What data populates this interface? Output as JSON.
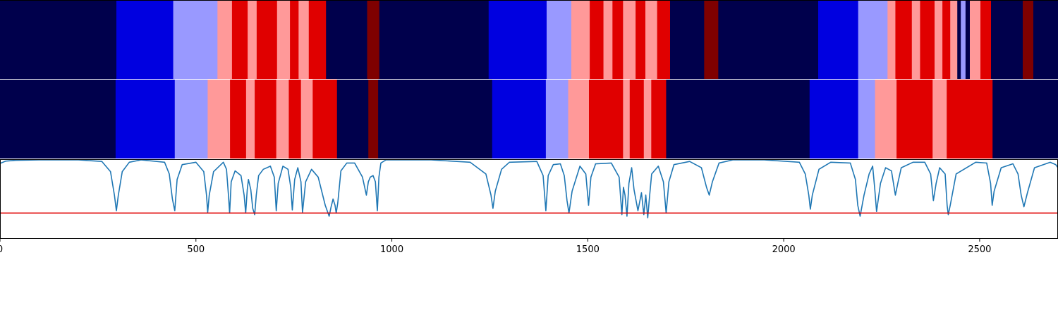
{
  "chart_data": [
    {
      "type": "heatmap",
      "panel": "top",
      "xlim": [
        0,
        2700
      ],
      "segments": [
        {
          "x0": 0,
          "x1": 297,
          "color": "#00004c"
        },
        {
          "x0": 297,
          "x1": 442,
          "color": "#0000e0"
        },
        {
          "x0": 442,
          "x1": 555,
          "color": "#9999ff"
        },
        {
          "x0": 555,
          "x1": 592,
          "color": "#ff9999"
        },
        {
          "x0": 592,
          "x1": 632,
          "color": "#e00000"
        },
        {
          "x0": 632,
          "x1": 655,
          "color": "#ff9999"
        },
        {
          "x0": 655,
          "x1": 707,
          "color": "#e00000"
        },
        {
          "x0": 707,
          "x1": 740,
          "color": "#ff9999"
        },
        {
          "x0": 740,
          "x1": 762,
          "color": "#e00000"
        },
        {
          "x0": 762,
          "x1": 788,
          "color": "#ff9999"
        },
        {
          "x0": 788,
          "x1": 832,
          "color": "#e00000"
        },
        {
          "x0": 832,
          "x1": 937,
          "color": "#00004c"
        },
        {
          "x0": 937,
          "x1": 968,
          "color": "#7f0000"
        },
        {
          "x0": 968,
          "x1": 1247,
          "color": "#00004c"
        },
        {
          "x0": 1247,
          "x1": 1395,
          "color": "#0000e0"
        },
        {
          "x0": 1395,
          "x1": 1458,
          "color": "#9999ff"
        },
        {
          "x0": 1458,
          "x1": 1505,
          "color": "#ff9999"
        },
        {
          "x0": 1505,
          "x1": 1540,
          "color": "#e00000"
        },
        {
          "x0": 1540,
          "x1": 1563,
          "color": "#ff9999"
        },
        {
          "x0": 1563,
          "x1": 1590,
          "color": "#e00000"
        },
        {
          "x0": 1590,
          "x1": 1622,
          "color": "#ff9999"
        },
        {
          "x0": 1622,
          "x1": 1647,
          "color": "#e00000"
        },
        {
          "x0": 1647,
          "x1": 1677,
          "color": "#ff9999"
        },
        {
          "x0": 1677,
          "x1": 1710,
          "color": "#e00000"
        },
        {
          "x0": 1710,
          "x1": 1797,
          "color": "#00004c"
        },
        {
          "x0": 1797,
          "x1": 1833,
          "color": "#7f0000"
        },
        {
          "x0": 1833,
          "x1": 2088,
          "color": "#00004c"
        },
        {
          "x0": 2088,
          "x1": 2190,
          "color": "#0000e0"
        },
        {
          "x0": 2190,
          "x1": 2265,
          "color": "#9999ff"
        },
        {
          "x0": 2265,
          "x1": 2285,
          "color": "#ff9999"
        },
        {
          "x0": 2285,
          "x1": 2327,
          "color": "#e00000"
        },
        {
          "x0": 2327,
          "x1": 2348,
          "color": "#ff9999"
        },
        {
          "x0": 2348,
          "x1": 2385,
          "color": "#e00000"
        },
        {
          "x0": 2385,
          "x1": 2405,
          "color": "#ff9999"
        },
        {
          "x0": 2405,
          "x1": 2425,
          "color": "#e00000"
        },
        {
          "x0": 2425,
          "x1": 2443,
          "color": "#ff9999"
        },
        {
          "x0": 2443,
          "x1": 2452,
          "color": "#00004c"
        },
        {
          "x0": 2452,
          "x1": 2464,
          "color": "#9999ff"
        },
        {
          "x0": 2464,
          "x1": 2475,
          "color": "#00004c"
        },
        {
          "x0": 2475,
          "x1": 2502,
          "color": "#ff9999"
        },
        {
          "x0": 2502,
          "x1": 2529,
          "color": "#e00000"
        },
        {
          "x0": 2529,
          "x1": 2610,
          "color": "#00004c"
        },
        {
          "x0": 2610,
          "x1": 2637,
          "color": "#7f0000"
        },
        {
          "x0": 2637,
          "x1": 2700,
          "color": "#00004c"
        }
      ]
    },
    {
      "type": "heatmap",
      "panel": "middle",
      "xlim": [
        0,
        2700
      ],
      "segments": [
        {
          "x0": 0,
          "x1": 295,
          "color": "#00004c"
        },
        {
          "x0": 295,
          "x1": 446,
          "color": "#0000e0"
        },
        {
          "x0": 446,
          "x1": 530,
          "color": "#9999ff"
        },
        {
          "x0": 530,
          "x1": 587,
          "color": "#ff9999"
        },
        {
          "x0": 587,
          "x1": 628,
          "color": "#e00000"
        },
        {
          "x0": 628,
          "x1": 650,
          "color": "#ff9999"
        },
        {
          "x0": 650,
          "x1": 705,
          "color": "#e00000"
        },
        {
          "x0": 705,
          "x1": 737,
          "color": "#ff9999"
        },
        {
          "x0": 737,
          "x1": 768,
          "color": "#e00000"
        },
        {
          "x0": 768,
          "x1": 798,
          "color": "#ff9999"
        },
        {
          "x0": 798,
          "x1": 860,
          "color": "#e00000"
        },
        {
          "x0": 860,
          "x1": 940,
          "color": "#00004c"
        },
        {
          "x0": 940,
          "x1": 965,
          "color": "#7f0000"
        },
        {
          "x0": 965,
          "x1": 1256,
          "color": "#00004c"
        },
        {
          "x0": 1256,
          "x1": 1393,
          "color": "#0000e0"
        },
        {
          "x0": 1393,
          "x1": 1450,
          "color": "#9999ff"
        },
        {
          "x0": 1450,
          "x1": 1503,
          "color": "#ff9999"
        },
        {
          "x0": 1503,
          "x1": 1590,
          "color": "#e00000"
        },
        {
          "x0": 1590,
          "x1": 1607,
          "color": "#ff9999"
        },
        {
          "x0": 1607,
          "x1": 1643,
          "color": "#e00000"
        },
        {
          "x0": 1643,
          "x1": 1662,
          "color": "#ff9999"
        },
        {
          "x0": 1662,
          "x1": 1700,
          "color": "#e00000"
        },
        {
          "x0": 1700,
          "x1": 2066,
          "color": "#00004c"
        },
        {
          "x0": 2066,
          "x1": 2190,
          "color": "#0000e0"
        },
        {
          "x0": 2190,
          "x1": 2233,
          "color": "#9999ff"
        },
        {
          "x0": 2233,
          "x1": 2288,
          "color": "#ff9999"
        },
        {
          "x0": 2288,
          "x1": 2380,
          "color": "#e00000"
        },
        {
          "x0": 2380,
          "x1": 2416,
          "color": "#ff9999"
        },
        {
          "x0": 2416,
          "x1": 2533,
          "color": "#e00000"
        },
        {
          "x0": 2533,
          "x1": 2700,
          "color": "#00004c"
        }
      ]
    },
    {
      "type": "line",
      "panel": "bottom",
      "xlim": [
        0,
        2700
      ],
      "xticks": [
        0,
        500,
        1000,
        1500,
        2000,
        2500
      ],
      "xtick_labels": [
        "0",
        "500",
        "1000",
        "1500",
        "2000",
        "2500"
      ],
      "series": [
        {
          "color": "#1f77b4",
          "x": [
            0,
            15,
            40,
            100,
            200,
            260,
            282,
            292,
            297,
            302,
            312,
            330,
            360,
            420,
            432,
            440,
            446,
            452,
            465,
            500,
            520,
            527,
            530,
            534,
            545,
            570,
            578,
            583,
            586,
            590,
            600,
            615,
            623,
            627,
            631,
            634,
            640,
            645,
            650,
            654,
            660,
            672,
            690,
            700,
            705,
            710,
            722,
            735,
            742,
            746,
            752,
            760,
            768,
            772,
            780,
            795,
            812,
            830,
            840,
            845,
            850,
            855,
            858,
            862,
            870,
            885,
            905,
            925,
            935,
            940,
            945,
            952,
            958,
            963,
            967,
            972,
            985,
            1020,
            1100,
            1200,
            1240,
            1253,
            1258,
            1264,
            1280,
            1300,
            1370,
            1386,
            1393,
            1399,
            1412,
            1430,
            1440,
            1447,
            1452,
            1460,
            1480,
            1495,
            1502,
            1508,
            1520,
            1560,
            1580,
            1587,
            1591,
            1595,
            1600,
            1605,
            1612,
            1618,
            1628,
            1637,
            1643,
            1648,
            1653,
            1658,
            1663,
            1680,
            1693,
            1700,
            1707,
            1720,
            1760,
            1790,
            1803,
            1810,
            1818,
            1835,
            1870,
            1950,
            2040,
            2055,
            2064,
            2068,
            2073,
            2090,
            2120,
            2170,
            2183,
            2189,
            2195,
            2205,
            2218,
            2227,
            2232,
            2237,
            2247,
            2260,
            2275,
            2285,
            2292,
            2300,
            2330,
            2360,
            2375,
            2382,
            2389,
            2398,
            2412,
            2417,
            2420,
            2425,
            2440,
            2490,
            2518,
            2528,
            2532,
            2537,
            2555,
            2585,
            2598,
            2606,
            2613,
            2622,
            2640,
            2680,
            2694,
            2700
          ],
          "y": [
            0.955,
            0.985,
            0.995,
            1.0,
            1.0,
            0.98,
            0.85,
            0.55,
            0.35,
            0.55,
            0.85,
            0.97,
            1.0,
            0.97,
            0.82,
            0.5,
            0.35,
            0.75,
            0.94,
            0.97,
            0.85,
            0.55,
            0.33,
            0.55,
            0.85,
            0.97,
            0.88,
            0.55,
            0.32,
            0.72,
            0.86,
            0.8,
            0.55,
            0.32,
            0.62,
            0.75,
            0.62,
            0.38,
            0.3,
            0.55,
            0.8,
            0.88,
            0.92,
            0.78,
            0.35,
            0.7,
            0.92,
            0.88,
            0.65,
            0.36,
            0.75,
            0.9,
            0.72,
            0.33,
            0.72,
            0.88,
            0.78,
            0.42,
            0.28,
            0.4,
            0.5,
            0.42,
            0.32,
            0.45,
            0.86,
            0.96,
            0.96,
            0.78,
            0.55,
            0.72,
            0.78,
            0.8,
            0.72,
            0.35,
            0.78,
            0.96,
            1.0,
            1.0,
            1.0,
            0.97,
            0.82,
            0.55,
            0.38,
            0.6,
            0.88,
            0.97,
            0.98,
            0.8,
            0.35,
            0.8,
            0.94,
            0.95,
            0.8,
            0.48,
            0.32,
            0.6,
            0.92,
            0.82,
            0.42,
            0.78,
            0.95,
            0.96,
            0.78,
            0.3,
            0.65,
            0.55,
            0.28,
            0.7,
            0.9,
            0.62,
            0.35,
            0.58,
            0.3,
            0.55,
            0.26,
            0.55,
            0.82,
            0.92,
            0.72,
            0.32,
            0.72,
            0.94,
            0.98,
            0.9,
            0.65,
            0.55,
            0.72,
            0.96,
            1.0,
            1.0,
            0.97,
            0.82,
            0.55,
            0.37,
            0.55,
            0.88,
            0.97,
            0.96,
            0.75,
            0.42,
            0.28,
            0.55,
            0.82,
            0.92,
            0.65,
            0.34,
            0.7,
            0.9,
            0.86,
            0.55,
            0.72,
            0.9,
            0.97,
            0.97,
            0.82,
            0.48,
            0.7,
            0.9,
            0.82,
            0.42,
            0.3,
            0.42,
            0.82,
            0.97,
            0.96,
            0.7,
            0.42,
            0.6,
            0.9,
            0.95,
            0.82,
            0.55,
            0.4,
            0.58,
            0.9,
            0.97,
            0.94,
            0.9
          ]
        },
        {
          "color": "#e00000",
          "x": [
            0,
            2700
          ],
          "y": [
            0.32,
            0.32
          ]
        }
      ]
    }
  ]
}
